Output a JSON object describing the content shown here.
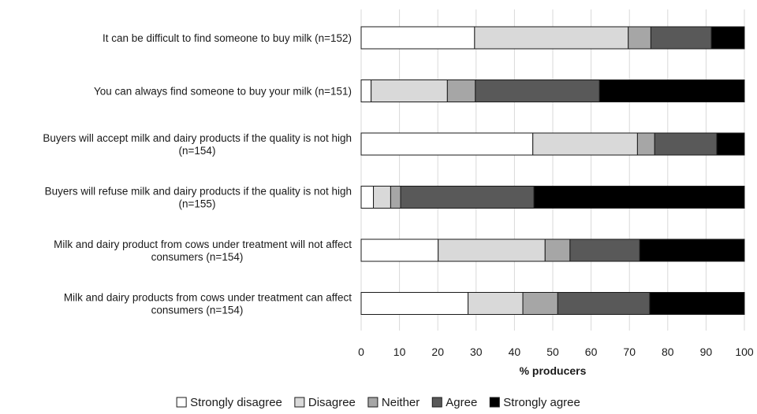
{
  "chart_data": {
    "type": "bar",
    "orientation": "horizontal",
    "stacked": true,
    "xlabel": "% producers",
    "xlim": [
      0,
      100
    ],
    "xticks": [
      "0",
      "10",
      "20",
      "30",
      "40",
      "50",
      "60",
      "70",
      "80",
      "90",
      "100"
    ],
    "grid": true,
    "legend_position": "bottom",
    "categories": [
      [
        "It can be difficult to find someone to buy milk      (n=152)"
      ],
      [
        "You can always find someone to buy your milk (n=151)"
      ],
      [
        "Buyers will accept milk and dairy products if the quality is not high",
        "(n=154)"
      ],
      [
        "Buyers will refuse milk and dairy products if the quality is not high",
        "(n=155)"
      ],
      [
        "Milk and dairy product from cows under treatment will not affect",
        "consumers          (n=154)"
      ],
      [
        "Milk and dairy products from cows under treatment can affect",
        "consumers (n=154)"
      ]
    ],
    "series": [
      {
        "name": "Strongly disagree",
        "color": "#ffffff",
        "values": [
          29.6,
          2.6,
          44.8,
          3.2,
          20.1,
          27.9
        ]
      },
      {
        "name": "Disagree",
        "color": "#d9d9d9",
        "values": [
          40.1,
          19.9,
          27.3,
          4.5,
          27.9,
          14.3
        ]
      },
      {
        "name": "Neither",
        "color": "#a6a6a6",
        "values": [
          5.9,
          7.3,
          4.5,
          2.6,
          6.5,
          9.1
        ]
      },
      {
        "name": "Agree",
        "color": "#595959",
        "values": [
          15.8,
          32.4,
          16.2,
          34.8,
          18.2,
          24.0
        ]
      },
      {
        "name": "Strongly agree",
        "color": "#000000",
        "values": [
          8.6,
          37.8,
          7.2,
          54.9,
          27.3,
          24.7
        ]
      }
    ]
  }
}
